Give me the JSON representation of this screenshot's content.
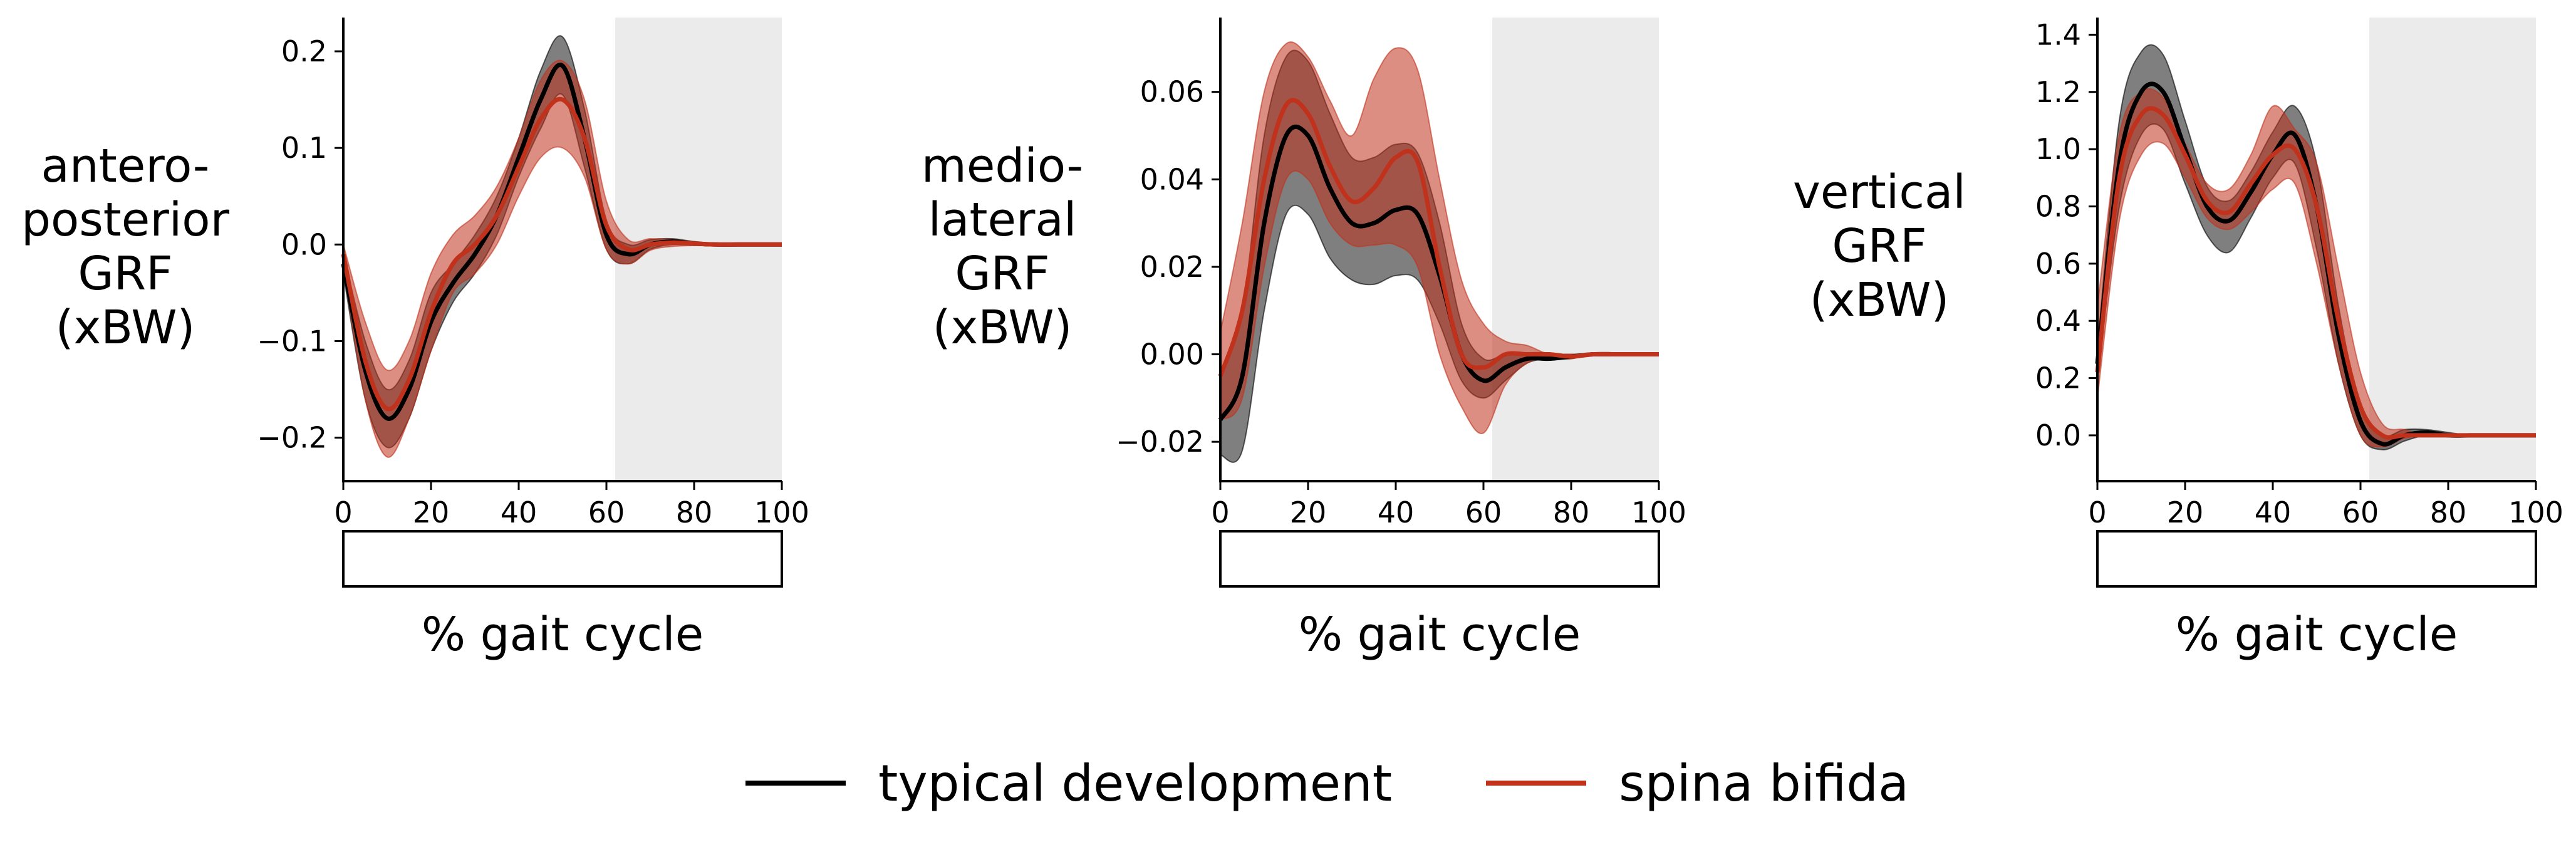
{
  "colors": {
    "typical": "#000000",
    "spina": "#c0321c",
    "stance_shade": "#ebebeb"
  },
  "legend": {
    "items": [
      {
        "key": "typical",
        "label": "typical development"
      },
      {
        "key": "spina",
        "label": "spina bifida"
      }
    ]
  },
  "chart_data": [
    {
      "type": "line",
      "ylabel": "antero-\nposterior\nGRF\n(xBW)",
      "xlabel": "% gait cycle",
      "xlim": [
        0,
        100
      ],
      "ylim": [
        -0.245,
        0.235
      ],
      "xticks": [
        0,
        20,
        40,
        60,
        80,
        100
      ],
      "yticks": [
        -0.2,
        -0.1,
        0.0,
        0.1,
        0.2
      ],
      "ytick_labels": [
        "−0.2",
        "−0.1",
        "0.0",
        "0.1",
        "0.2"
      ],
      "shaded_x": [
        62,
        100
      ],
      "x": [
        0,
        5,
        10,
        15,
        20,
        25,
        30,
        35,
        40,
        45,
        50,
        55,
        60,
        65,
        70,
        75,
        80,
        85,
        90,
        95,
        100
      ],
      "series": [
        {
          "name": "typical development",
          "color_key": "typical",
          "mean": [
            -0.02,
            -0.13,
            -0.18,
            -0.15,
            -0.08,
            -0.04,
            -0.01,
            0.03,
            0.09,
            0.15,
            0.185,
            0.11,
            0.01,
            -0.01,
            0.0,
            0.003,
            0.001,
            0.0,
            0.0,
            0.0,
            0.0
          ],
          "upper": [
            -0.01,
            -0.1,
            -0.15,
            -0.12,
            -0.05,
            -0.02,
            0.01,
            0.05,
            0.11,
            0.18,
            0.215,
            0.14,
            0.025,
            0.0,
            0.005,
            0.006,
            0.003,
            0.001,
            0.0,
            0.0,
            0.0
          ],
          "lower": [
            -0.03,
            -0.16,
            -0.21,
            -0.18,
            -0.11,
            -0.06,
            -0.03,
            0.01,
            0.07,
            0.12,
            0.155,
            0.08,
            -0.005,
            -0.02,
            -0.005,
            0.0,
            -0.001,
            -0.001,
            0.0,
            0.0,
            0.0
          ]
        },
        {
          "name": "spina bifida",
          "color_key": "spina",
          "mean": [
            -0.01,
            -0.12,
            -0.17,
            -0.14,
            -0.07,
            -0.02,
            0.0,
            0.03,
            0.08,
            0.13,
            0.15,
            0.11,
            0.02,
            -0.005,
            0.0,
            0.002,
            0.001,
            0.0,
            0.0,
            0.0,
            0.0
          ],
          "upper": [
            0.0,
            -0.08,
            -0.13,
            -0.1,
            -0.03,
            0.01,
            0.03,
            0.06,
            0.11,
            0.17,
            0.19,
            0.15,
            0.045,
            0.005,
            0.006,
            0.005,
            0.003,
            0.001,
            0.0,
            0.0,
            0.0
          ],
          "lower": [
            -0.02,
            -0.16,
            -0.22,
            -0.18,
            -0.11,
            -0.05,
            -0.03,
            0.0,
            0.05,
            0.09,
            0.1,
            0.07,
            -0.005,
            -0.02,
            -0.006,
            -0.002,
            -0.001,
            -0.001,
            0.0,
            0.0,
            0.0
          ]
        }
      ]
    },
    {
      "type": "line",
      "ylabel": "medio-\nlateral\nGRF\n(xBW)",
      "xlabel": "% gait cycle",
      "xlim": [
        0,
        100
      ],
      "ylim": [
        -0.029,
        0.077
      ],
      "xticks": [
        0,
        20,
        40,
        60,
        80,
        100
      ],
      "yticks": [
        -0.02,
        0.0,
        0.02,
        0.04,
        0.06
      ],
      "ytick_labels": [
        "−0.02",
        "0.00",
        "0.02",
        "0.04",
        "0.06"
      ],
      "shaded_x": [
        62,
        100
      ],
      "x": [
        0,
        5,
        10,
        15,
        20,
        25,
        30,
        35,
        40,
        45,
        50,
        55,
        60,
        65,
        70,
        75,
        80,
        85,
        90,
        95,
        100
      ],
      "series": [
        {
          "name": "typical development",
          "color_key": "typical",
          "mean": [
            -0.015,
            -0.005,
            0.03,
            0.05,
            0.05,
            0.038,
            0.03,
            0.03,
            0.033,
            0.032,
            0.018,
            0.0,
            -0.006,
            -0.003,
            -0.001,
            -0.001,
            -0.0005,
            0.0,
            0.0,
            0.0,
            0.0
          ],
          "upper": [
            -0.005,
            0.01,
            0.05,
            0.068,
            0.067,
            0.055,
            0.045,
            0.045,
            0.048,
            0.046,
            0.03,
            0.007,
            -0.001,
            0.0,
            0.0,
            0.0,
            0.0,
            0.0,
            0.0,
            0.0,
            0.0
          ],
          "lower": [
            -0.023,
            -0.022,
            0.01,
            0.032,
            0.032,
            0.022,
            0.017,
            0.016,
            0.018,
            0.017,
            0.007,
            -0.006,
            -0.01,
            -0.006,
            -0.002,
            -0.001,
            -0.001,
            0.0,
            0.0,
            0.0,
            0.0
          ]
        },
        {
          "name": "spina bifida",
          "color_key": "spina",
          "mean": [
            -0.005,
            0.01,
            0.04,
            0.057,
            0.055,
            0.043,
            0.035,
            0.038,
            0.045,
            0.044,
            0.02,
            0.0,
            -0.003,
            0.0,
            0.0,
            0.0,
            -0.0005,
            0.0,
            0.0,
            0.0,
            0.0
          ],
          "upper": [
            0.005,
            0.03,
            0.06,
            0.071,
            0.068,
            0.058,
            0.05,
            0.063,
            0.07,
            0.065,
            0.04,
            0.017,
            0.007,
            0.003,
            0.002,
            0.0,
            0.0,
            0.0,
            0.0,
            0.0,
            0.0
          ],
          "lower": [
            -0.015,
            -0.01,
            0.02,
            0.04,
            0.04,
            0.03,
            0.025,
            0.025,
            0.025,
            0.02,
            0.0,
            -0.012,
            -0.018,
            -0.007,
            -0.002,
            -0.001,
            -0.001,
            0.0,
            0.0,
            0.0,
            0.0
          ]
        }
      ]
    },
    {
      "type": "line",
      "ylabel": "vertical\nGRF\n(xBW)",
      "xlabel": "% gait cycle",
      "xlim": [
        0,
        100
      ],
      "ylim": [
        -0.16,
        1.46
      ],
      "xticks": [
        0,
        20,
        40,
        60,
        80,
        100
      ],
      "yticks": [
        0.0,
        0.2,
        0.4,
        0.6,
        0.8,
        1.0,
        1.2,
        1.4
      ],
      "ytick_labels": [
        "0.0",
        "0.2",
        "0.4",
        "0.6",
        "0.8",
        "1.0",
        "1.2",
        "1.4"
      ],
      "shaded_x": [
        62,
        100
      ],
      "x": [
        0,
        5,
        10,
        15,
        20,
        25,
        30,
        35,
        40,
        45,
        50,
        55,
        60,
        65,
        70,
        75,
        80,
        85,
        90,
        95,
        100
      ],
      "series": [
        {
          "name": "typical development",
          "color_key": "typical",
          "mean": [
            0.25,
            0.95,
            1.2,
            1.2,
            1.0,
            0.8,
            0.75,
            0.85,
            0.98,
            1.05,
            0.8,
            0.35,
            0.05,
            -0.03,
            0.0,
            0.01,
            0.0,
            0.0,
            0.0,
            0.0,
            0.0
          ],
          "upper": [
            0.3,
            1.1,
            1.34,
            1.33,
            1.1,
            0.87,
            0.82,
            0.92,
            1.06,
            1.15,
            0.95,
            0.45,
            0.1,
            0.0,
            0.02,
            0.02,
            0.01,
            0.0,
            0.0,
            0.0,
            0.0
          ],
          "lower": [
            0.2,
            0.8,
            1.05,
            1.07,
            0.88,
            0.7,
            0.64,
            0.76,
            0.9,
            0.95,
            0.65,
            0.25,
            0.0,
            -0.05,
            -0.02,
            0.0,
            -0.005,
            0.0,
            0.0,
            0.0,
            0.0
          ]
        },
        {
          "name": "spina bifida",
          "color_key": "spina",
          "mean": [
            0.22,
            0.9,
            1.12,
            1.12,
            0.98,
            0.82,
            0.78,
            0.88,
            0.98,
            1.0,
            0.8,
            0.4,
            0.1,
            0.0,
            0.0,
            0.0,
            0.0,
            0.0,
            0.0,
            0.0,
            0.0
          ],
          "upper": [
            0.45,
            1.05,
            1.2,
            1.18,
            1.02,
            0.88,
            0.86,
            0.98,
            1.15,
            1.07,
            0.95,
            0.58,
            0.22,
            0.04,
            0.02,
            0.0,
            0.0,
            0.0,
            0.0,
            0.0,
            0.0
          ],
          "lower": [
            0.13,
            0.75,
            0.98,
            1.02,
            0.9,
            0.76,
            0.72,
            0.78,
            0.86,
            0.88,
            0.6,
            0.25,
            0.0,
            -0.04,
            -0.01,
            0.0,
            0.0,
            0.0,
            0.0,
            0.0,
            0.0
          ]
        }
      ]
    }
  ]
}
